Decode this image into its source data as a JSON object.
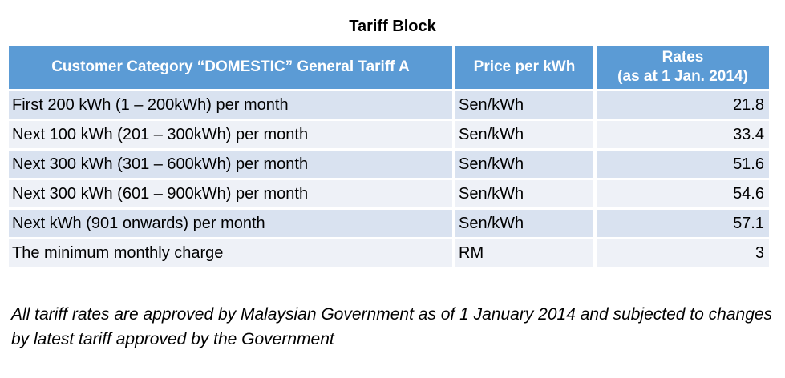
{
  "title": "Tariff Block",
  "table": {
    "headers": {
      "category": "Customer Category “DOMESTIC” General Tariff A",
      "price": "Price per kWh",
      "rates_line1": "Rates",
      "rates_line2": "(as at 1 Jan. 2014)"
    },
    "rows": [
      {
        "category": "First 200 kWh (1 – 200kWh) per month",
        "unit": "Sen/kWh",
        "rate": "21.8"
      },
      {
        "category": "Next 100 kWh (201 – 300kWh) per month",
        "unit": "Sen/kWh",
        "rate": "33.4"
      },
      {
        "category": "Next 300 kWh (301 – 600kWh) per month",
        "unit": "Sen/kWh",
        "rate": "51.6"
      },
      {
        "category": "Next 300 kWh (601 – 900kWh) per month",
        "unit": "Sen/kWh",
        "rate": "54.6"
      },
      {
        "category": "Next kWh (901 onwards) per month",
        "unit": "Sen/kWh",
        "rate": "57.1"
      },
      {
        "category": "The minimum monthly charge",
        "unit": "RM",
        "rate": "3"
      }
    ]
  },
  "note": "All tariff rates are approved by Malaysian Government as of 1 January 2014 and subjected to changes by latest tariff approved by the Government",
  "colors": {
    "header_bg": "#5b9bd5",
    "header_text": "#ffffff",
    "row_shade": "#d9e2f0",
    "row_plain": "#eef1f7"
  }
}
